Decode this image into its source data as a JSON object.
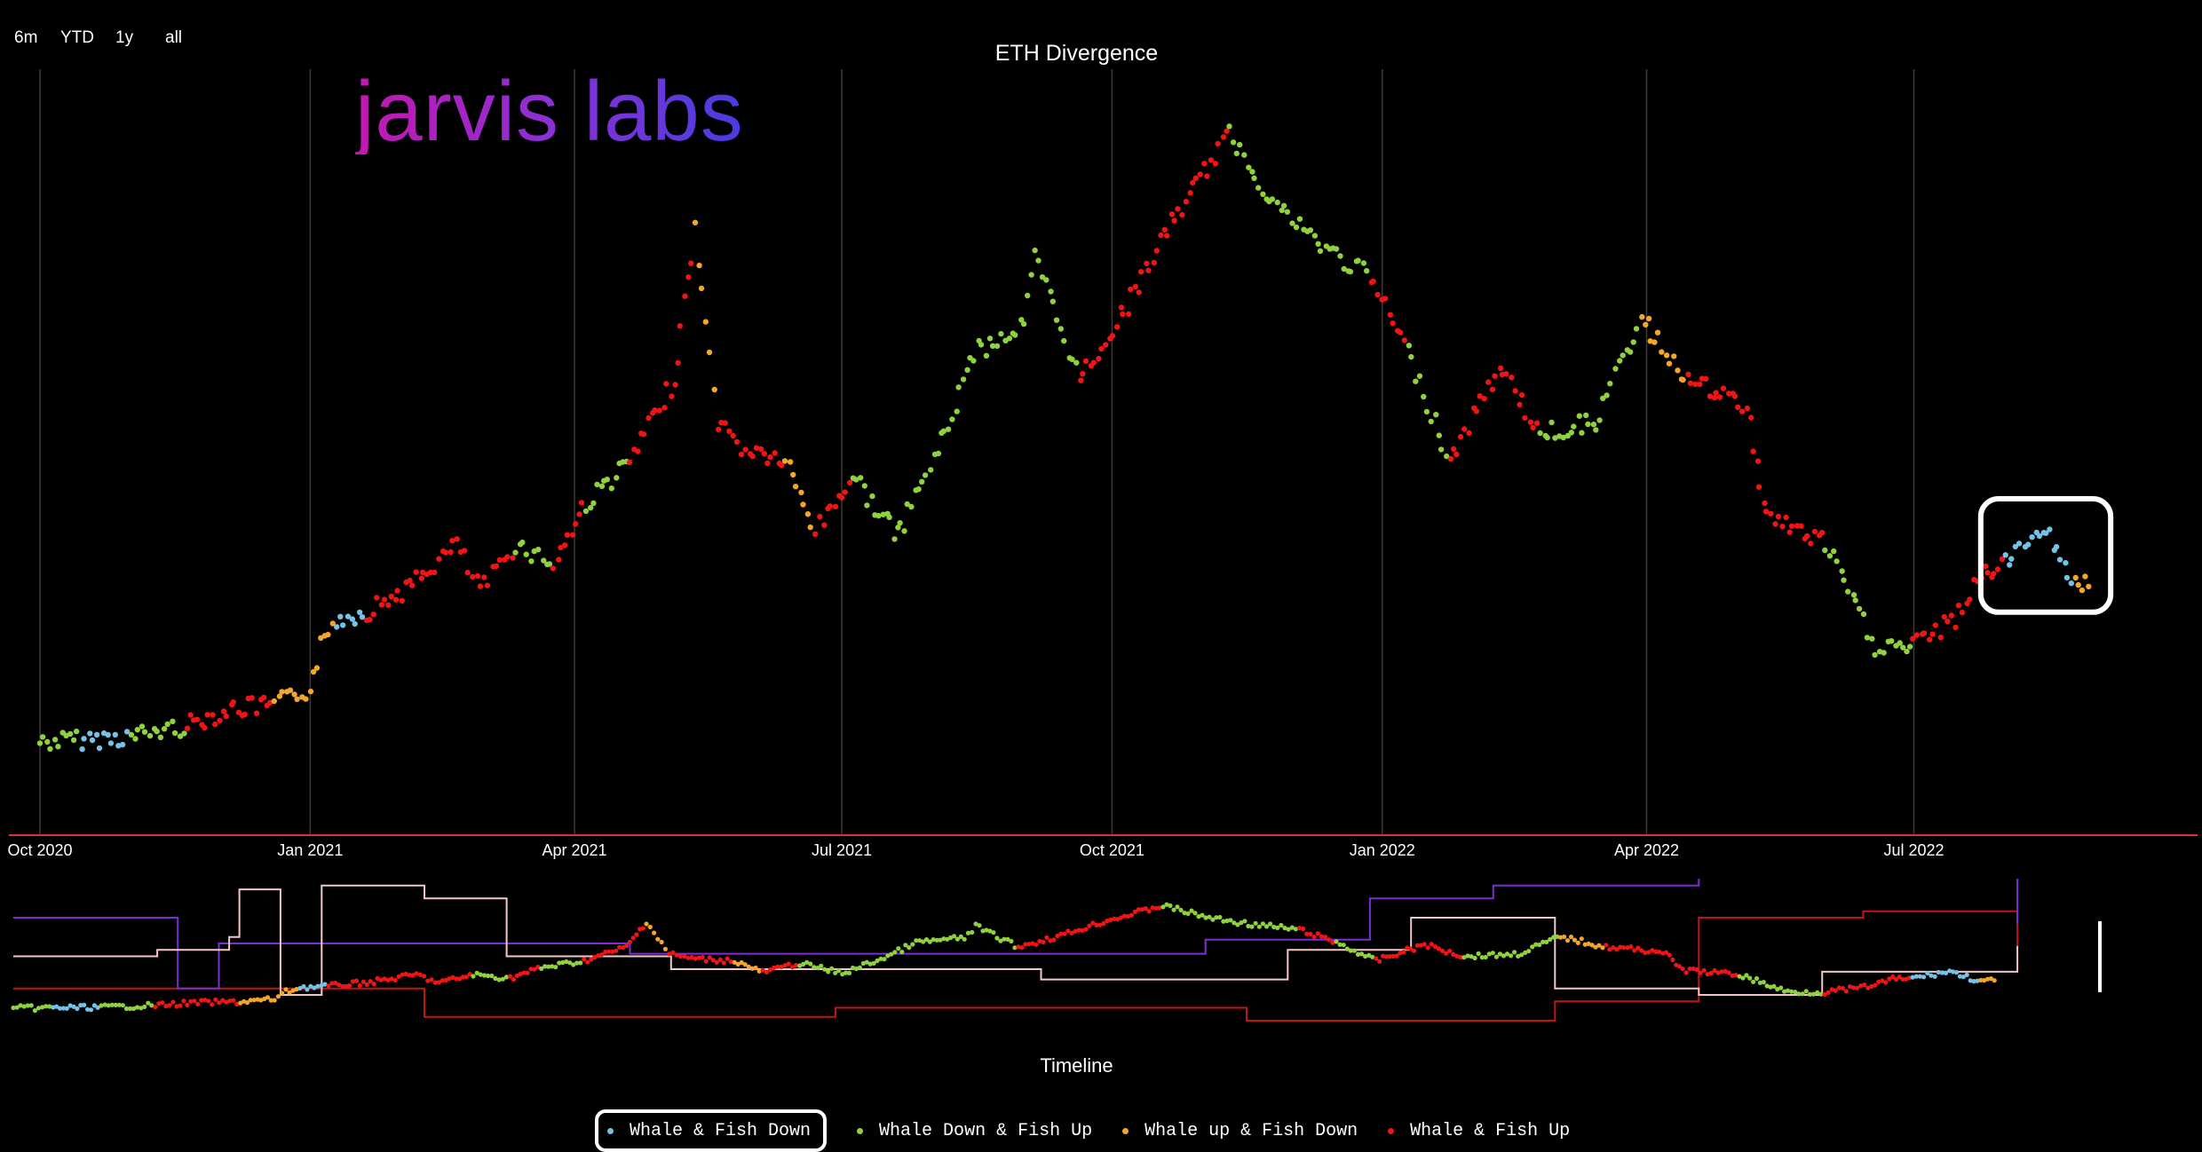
{
  "range_buttons": [
    "6m",
    "YTD",
    "1y",
    "all"
  ],
  "logo_text": "jarvis labs",
  "timeline_label": "Timeline",
  "colors": {
    "whale_fish_down": "#74c2e6",
    "whale_down_fish_up": "#8fd13f",
    "whale_up_fish_down": "#f4a62a",
    "whale_fish_up": "#f01414",
    "nav_purple": "#7b2fd4",
    "nav_pink": "#f2c7c7",
    "nav_red": "#c41515"
  },
  "chart_data": {
    "type": "scatter",
    "title": "ETH Divergence",
    "x_axis": {
      "type": "date",
      "range": [
        "2020-10-01",
        "2022-09-25"
      ],
      "ticks": [
        "Oct 2020",
        "Jan 2021",
        "Apr 2021",
        "Jul 2021",
        "Oct 2021",
        "Jan 2022",
        "Apr 2022",
        "Jul 2022"
      ],
      "tick_dates": [
        "2020-10-01",
        "2021-01-01",
        "2021-04-01",
        "2021-07-01",
        "2021-10-01",
        "2022-01-01",
        "2022-04-01",
        "2022-07-01"
      ]
    },
    "y_axis": {
      "labels_shown": false,
      "range": [
        0,
        5000
      ]
    },
    "grid": "vertical",
    "legend_position": "bottom",
    "series": [
      {
        "name": "Whale & Fish Down",
        "key": "whale_fish_down"
      },
      {
        "name": "Whale Down & Fish Up",
        "key": "whale_down_fish_up"
      },
      {
        "name": "Whale up & Fish Down",
        "key": "whale_up_fish_down"
      },
      {
        "name": "Whale & Fish Up",
        "key": "whale_fish_up"
      }
    ],
    "price_path": [
      [
        "2020-10-01",
        350,
        "whale_down_fish_up"
      ],
      [
        "2020-10-15",
        365,
        "whale_fish_down"
      ],
      [
        "2020-11-01",
        390,
        "whale_down_fish_up"
      ],
      [
        "2020-11-20",
        470,
        "whale_fish_up"
      ],
      [
        "2020-12-05",
        590,
        "whale_fish_up"
      ],
      [
        "2020-12-20",
        620,
        "whale_up_fish_down"
      ],
      [
        "2021-01-01",
        740,
        "whale_up_fish_down"
      ],
      [
        "2021-01-05",
        1050,
        "whale_up_fish_down"
      ],
      [
        "2021-01-10",
        1250,
        "whale_fish_down"
      ],
      [
        "2021-01-20",
        1300,
        "whale_fish_up"
      ],
      [
        "2021-02-05",
        1500,
        "whale_fish_up"
      ],
      [
        "2021-02-20",
        1800,
        "whale_fish_up"
      ],
      [
        "2021-02-28",
        1450,
        "whale_fish_up"
      ],
      [
        "2021-03-12",
        1800,
        "whale_down_fish_up"
      ],
      [
        "2021-03-25",
        1650,
        "whale_fish_up"
      ],
      [
        "2021-04-05",
        2100,
        "whale_down_fish_up"
      ],
      [
        "2021-04-20",
        2400,
        "whale_fish_up"
      ],
      [
        "2021-05-05",
        3000,
        "whale_fish_up"
      ],
      [
        "2021-05-12",
        4100,
        "whale_up_fish_down"
      ],
      [
        "2021-05-20",
        2700,
        "whale_fish_up"
      ],
      [
        "2021-05-28",
        2500,
        "whale_fish_up"
      ],
      [
        "2021-06-12",
        2400,
        "whale_up_fish_down"
      ],
      [
        "2021-06-22",
        1900,
        "whale_fish_up"
      ],
      [
        "2021-07-05",
        2300,
        "whale_down_fish_up"
      ],
      [
        "2021-07-20",
        1850,
        "whale_down_fish_up"
      ],
      [
        "2021-08-05",
        2600,
        "whale_down_fish_up"
      ],
      [
        "2021-08-15",
        3200,
        "whale_down_fish_up"
      ],
      [
        "2021-09-01",
        3400,
        "whale_down_fish_up"
      ],
      [
        "2021-09-05",
        3900,
        "whale_down_fish_up"
      ],
      [
        "2021-09-20",
        3000,
        "whale_fish_up"
      ],
      [
        "2021-10-05",
        3500,
        "whale_fish_up"
      ],
      [
        "2021-10-20",
        4100,
        "whale_fish_up"
      ],
      [
        "2021-11-10",
        4800,
        "whale_down_fish_up"
      ],
      [
        "2021-11-25",
        4300,
        "whale_down_fish_up"
      ],
      [
        "2021-12-10",
        4000,
        "whale_down_fish_up"
      ],
      [
        "2021-12-28",
        3750,
        "whale_fish_up"
      ],
      [
        "2022-01-10",
        3200,
        "whale_down_fish_up"
      ],
      [
        "2022-01-24",
        2400,
        "whale_fish_up"
      ],
      [
        "2022-02-10",
        3100,
        "whale_fish_up"
      ],
      [
        "2022-02-24",
        2600,
        "whale_down_fish_up"
      ],
      [
        "2022-03-15",
        2700,
        "whale_down_fish_up"
      ],
      [
        "2022-03-30",
        3450,
        "whale_up_fish_down"
      ],
      [
        "2022-04-15",
        3000,
        "whale_fish_up"
      ],
      [
        "2022-05-05",
        2800,
        "whale_fish_up"
      ],
      [
        "2022-05-12",
        2000,
        "whale_fish_up"
      ],
      [
        "2022-06-01",
        1800,
        "whale_down_fish_up"
      ],
      [
        "2022-06-18",
        1050,
        "whale_down_fish_up"
      ],
      [
        "2022-07-01",
        1050,
        "whale_fish_up"
      ],
      [
        "2022-07-15",
        1250,
        "whale_fish_up"
      ],
      [
        "2022-07-25",
        1600,
        "whale_fish_up"
      ],
      [
        "2022-08-01",
        1650,
        "whale_fish_down"
      ],
      [
        "2022-08-14",
        1950,
        "whale_fish_down"
      ],
      [
        "2022-08-25",
        1500,
        "whale_up_fish_down"
      ],
      [
        "2022-08-31",
        1550,
        "whale_fish_down"
      ]
    ]
  },
  "navigator": {
    "purple": [
      [
        0,
        0.2
      ],
      [
        0.07,
        0.2
      ],
      [
        0.08,
        0.75
      ],
      [
        0.1,
        0.4
      ],
      [
        0.3,
        0.48
      ],
      [
        0.58,
        0.37
      ],
      [
        0.66,
        0.05
      ],
      [
        0.72,
        -0.05
      ],
      [
        0.82,
        -0.2
      ],
      [
        0.96,
        -0.2
      ],
      [
        0.975,
        0.25
      ]
    ],
    "pink": [
      [
        0,
        0.5
      ],
      [
        0.07,
        0.45
      ],
      [
        0.105,
        0.35
      ],
      [
        0.11,
        -0.02
      ],
      [
        0.13,
        0.8
      ],
      [
        0.15,
        -0.05
      ],
      [
        0.2,
        0.05
      ],
      [
        0.24,
        0.5
      ],
      [
        0.32,
        0.6
      ],
      [
        0.5,
        0.68
      ],
      [
        0.62,
        0.45
      ],
      [
        0.68,
        0.2
      ],
      [
        0.75,
        0.75
      ],
      [
        0.82,
        0.8
      ],
      [
        0.88,
        0.62
      ],
      [
        0.975,
        0.42
      ]
    ],
    "red": [
      [
        0,
        0.75
      ],
      [
        0.1,
        0.75
      ],
      [
        0.2,
        0.97
      ],
      [
        0.4,
        0.9
      ],
      [
        0.6,
        1.0
      ],
      [
        0.75,
        0.85
      ],
      [
        0.82,
        0.2
      ],
      [
        0.9,
        0.15
      ],
      [
        0.975,
        0.45
      ]
    ]
  }
}
